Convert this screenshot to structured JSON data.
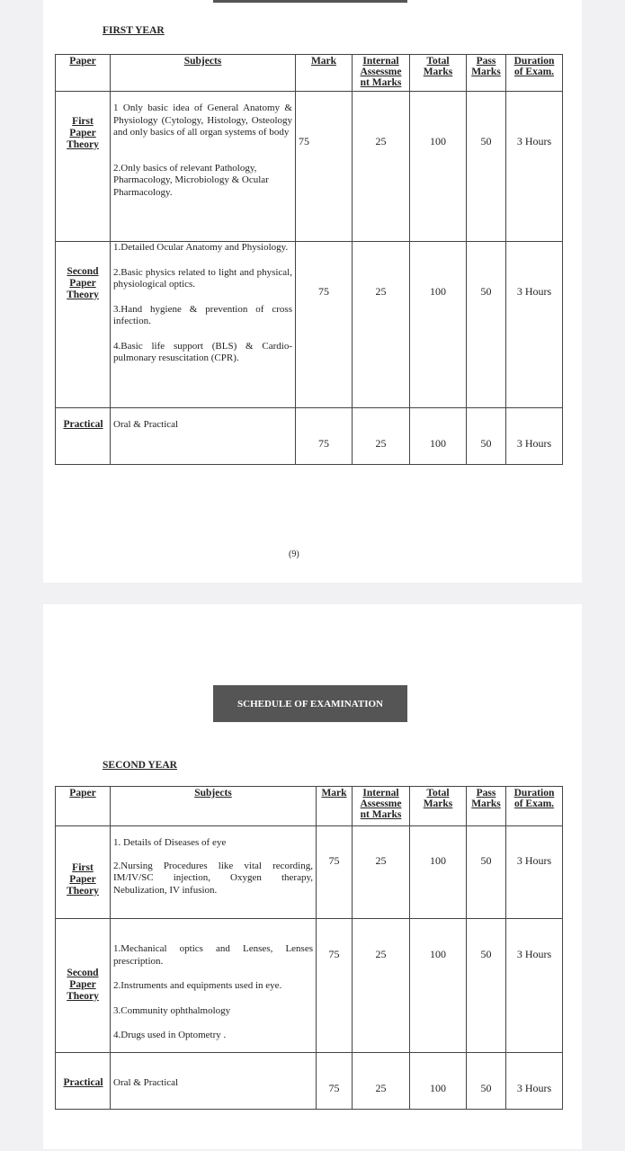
{
  "page_number": "(9)",
  "banner": "SCHEDULE OF EXAMINATION",
  "headers": {
    "paper": "Paper",
    "subjects": "Subjects",
    "mark": "Mark",
    "internal": "Internal Assessme nt Marks",
    "total": "Total Marks",
    "pass": "Pass Marks",
    "duration": "Duration of Exam."
  },
  "first_year": {
    "title": "FIRST YEAR",
    "rows": [
      {
        "paper": "First Paper Theory",
        "subjects": [
          "1 Only basic idea of General Anatomy & Physiology (Cytology, Histology, Osteology and only basics of all organ systems of body",
          "2.Only basics of relevant Pathology, Pharmacology, Microbiology & Ocular Pharmacology."
        ],
        "mark": "75",
        "internal": "25",
        "total": "100",
        "pass": "50",
        "duration": "3 Hours"
      },
      {
        "paper": "Second Paper Theory",
        "subjects": [
          "1.Detailed Ocular Anatomy and Physiology.",
          "2.Basic physics related to light and physical, physiological optics.",
          "3.Hand hygiene & prevention of cross infection.",
          "4.Basic life support (BLS) & Cardio-pulmonary resuscitation (CPR)."
        ],
        "mark": "75",
        "internal": "25",
        "total": "100",
        "pass": "50",
        "duration": "3 Hours"
      },
      {
        "paper": "Practical",
        "subjects": [
          "Oral & Practical"
        ],
        "mark": "75",
        "internal": "25",
        "total": "100",
        "pass": "50",
        "duration": "3 Hours"
      }
    ]
  },
  "second_year": {
    "title": "SECOND YEAR",
    "rows": [
      {
        "paper": "First Paper Theory",
        "subjects": [
          "1. Details of Diseases of eye",
          "2.Nursing Procedures like vital recording, IM/IV/SC injection, Oxygen therapy, Nebulization, IV infusion."
        ],
        "mark": "75",
        "internal": "25",
        "total": "100",
        "pass": "50",
        "duration": "3 Hours"
      },
      {
        "paper": "Second Paper Theory",
        "subjects": [
          "1.Mechanical optics and Lenses, Lenses prescription.",
          "2.Instruments and equipments used in eye.",
          "3.Community ophthalmology",
          "4.Drugs used in Optometry ."
        ],
        "mark": "75",
        "internal": "25",
        "total": "100",
        "pass": "50",
        "duration": "3 Hours"
      },
      {
        "paper": "Practical",
        "subjects": [
          "Oral & Practical"
        ],
        "mark": "75",
        "internal": "25",
        "total": "100",
        "pass": "50",
        "duration": "3 Hours"
      }
    ]
  }
}
